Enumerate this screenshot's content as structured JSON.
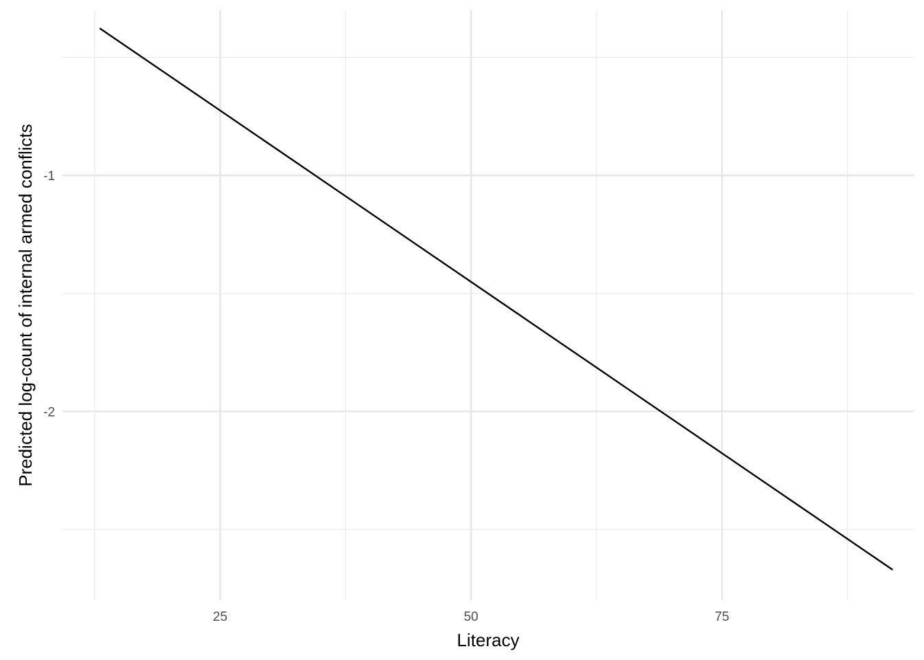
{
  "chart_data": {
    "type": "line",
    "xlabel": "Literacy",
    "ylabel": "Predicted log-count of internal armed conflicts",
    "xlim": [
      9.3,
      94.1
    ],
    "ylim": [
      -2.8,
      -0.3
    ],
    "x_ticks": [
      25,
      50,
      75
    ],
    "x_tick_labels": [
      "25",
      "50",
      "75"
    ],
    "x_minor_ticks": [
      12.5,
      37.5,
      62.5,
      87.5
    ],
    "y_ticks": [
      -1,
      -2
    ],
    "y_tick_labels": [
      "-1",
      "-2"
    ],
    "y_minor_ticks": [
      -0.5,
      -1.5,
      -2.5
    ],
    "grid": true,
    "legend": "none",
    "series": [
      {
        "x": [
          13.0,
          92.0
        ],
        "y": [
          -0.376,
          -2.671
        ],
        "color": "#000000"
      }
    ]
  }
}
